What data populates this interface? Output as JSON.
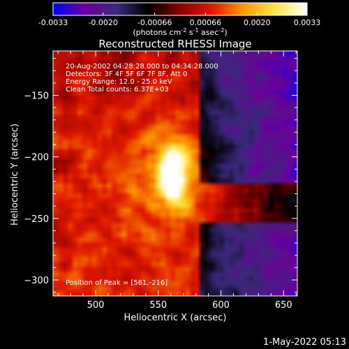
{
  "chart_data": {
    "type": "heatmap",
    "title": "Reconstructed RHESSI Image",
    "colorbar": {
      "unit_label": "(photons cm",
      "unit_exp1": "-2",
      "unit_mid": " s",
      "unit_exp2": "-1",
      "unit_mid2": " asec",
      "unit_exp3": "-2",
      "unit_end": ")",
      "range": [
        -0.0033,
        0.0033
      ],
      "tick_labels": [
        "-0.0033",
        "-0.0020",
        "-0.00066",
        "0.00066",
        "0.0020",
        "0.0033"
      ],
      "tick_values": [
        -0.0033,
        -0.002,
        -0.00066,
        0.00066,
        0.002,
        0.0033
      ],
      "colors": [
        "#0000ff",
        "#6b009a",
        "#3a2a7a",
        "#000000",
        "#8a0000",
        "#e01800",
        "#ff9a00",
        "#ffe64a",
        "#ffffff"
      ]
    },
    "xlabel": "Heliocentric X (arcsec)",
    "ylabel": "Heliocentric Y (arcsec)",
    "xlim": [
      466,
      661
    ],
    "ylim": [
      -313,
      -114
    ],
    "x_ticks": [
      500,
      550,
      600,
      650
    ],
    "y_ticks": [
      -150,
      -200,
      -250,
      -300
    ],
    "annotations": [
      "20-Aug-2002 04:28:28.000 to 04:34:28.000",
      "Detectors: 3F 4F 5F 6F 7F 8F, Att 0",
      "Energy Range: 12.0 - 25.0 keV",
      "Clean     Total counts: 6.37E+03"
    ],
    "peak_label": "Position of Peak = [561,-216]",
    "peak": {
      "x": 561,
      "y": -216,
      "value": 0.0033
    }
  },
  "footer": {
    "timestamp": "1-May-2022 05:13"
  }
}
